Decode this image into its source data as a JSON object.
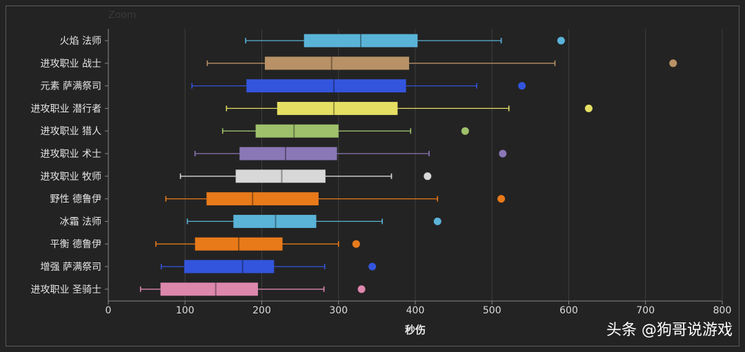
{
  "zoom_label": "Zoom",
  "watermark": "头条 @狗哥说游戏",
  "chart_data": {
    "type": "boxplot",
    "xlabel": "秒伤",
    "xlim": [
      0,
      800
    ],
    "xticks": [
      0,
      100,
      200,
      300,
      400,
      500,
      600,
      700,
      800
    ],
    "grid": true,
    "categories": [
      "火焰 法师",
      "进攻职业 战士",
      "元素 萨满祭司",
      "进攻职业 潜行者",
      "进攻职业 猎人",
      "进攻职业 术士",
      "进攻职业 牧师",
      "野性 德鲁伊",
      "冰霜 法师",
      "平衡 德鲁伊",
      "增强 萨满祭司",
      "进攻职业 圣骑士"
    ],
    "boxes": [
      {
        "min": 179,
        "q1": 255,
        "median": 329,
        "q3": 403,
        "max": 512,
        "outlier": 590,
        "color": "#5ab4d8"
      },
      {
        "min": 129,
        "q1": 204,
        "median": 291,
        "q3": 392,
        "max": 582,
        "outlier": 736,
        "color": "#b89266"
      },
      {
        "min": 109,
        "q1": 180,
        "median": 294,
        "q3": 388,
        "max": 480,
        "outlier": 539,
        "color": "#3355dd"
      },
      {
        "min": 154,
        "q1": 220,
        "median": 294,
        "q3": 377,
        "max": 522,
        "outlier": 626,
        "color": "#e5df63"
      },
      {
        "min": 149,
        "q1": 192,
        "median": 242,
        "q3": 300,
        "max": 394,
        "outlier": 465,
        "color": "#9fc16b"
      },
      {
        "min": 113,
        "q1": 171,
        "median": 231,
        "q3": 298,
        "max": 418,
        "outlier": 514,
        "color": "#8a77b6"
      },
      {
        "min": 94,
        "q1": 166,
        "median": 226,
        "q3": 283,
        "max": 369,
        "outlier": 416,
        "color": "#d8d8d8"
      },
      {
        "min": 75,
        "q1": 128,
        "median": 188,
        "q3": 274,
        "max": 429,
        "outlier": 512,
        "color": "#e87a1a"
      },
      {
        "min": 103,
        "q1": 163,
        "median": 218,
        "q3": 271,
        "max": 357,
        "outlier": 429,
        "color": "#5ab4d8"
      },
      {
        "min": 62,
        "q1": 113,
        "median": 170,
        "q3": 227,
        "max": 300,
        "outlier": 323,
        "color": "#e87a1a"
      },
      {
        "min": 69,
        "q1": 99,
        "median": 175,
        "q3": 216,
        "max": 282,
        "outlier": 344,
        "color": "#3355dd"
      },
      {
        "min": 42,
        "q1": 68,
        "median": 140,
        "q3": 195,
        "max": 281,
        "outlier": 330,
        "color": "#dd87ad"
      }
    ]
  }
}
